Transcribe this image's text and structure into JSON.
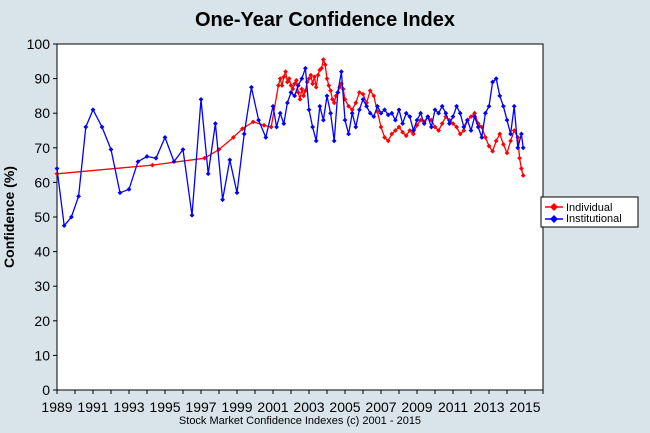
{
  "chart_data": {
    "type": "line",
    "title": "One-Year Confidence Index",
    "xlabel": "",
    "ylabel": "Confidence (%)",
    "footer": "Stock Market Confidence Indexes (c) 2001 - 2015",
    "xlim": [
      1989,
      2016
    ],
    "ylim": [
      0,
      100
    ],
    "yticks": [
      0,
      10,
      20,
      30,
      40,
      50,
      60,
      70,
      80,
      90,
      100
    ],
    "xticks": [
      1989,
      1991,
      1993,
      1995,
      1997,
      1999,
      2001,
      2003,
      2005,
      2007,
      2009,
      2011,
      2013,
      2015
    ],
    "grid": false,
    "legend": "right",
    "series": [
      {
        "name": "Individual",
        "color": "#ff0000",
        "x": [
          1989.0,
          1994.3,
          1997.2,
          1998.0,
          1998.8,
          1999.3,
          1999.9,
          2000.5,
          2000.9,
          2001.3,
          2001.4,
          2001.5,
          2001.6,
          2001.7,
          2001.8,
          2001.9,
          2002.0,
          2002.1,
          2002.2,
          2002.3,
          2002.4,
          2002.5,
          2002.6,
          2002.7,
          2002.8,
          2002.9,
          2003.0,
          2003.1,
          2003.2,
          2003.3,
          2003.4,
          2003.5,
          2003.6,
          2003.7,
          2003.8,
          2003.9,
          2004.0,
          2004.1,
          2004.2,
          2004.3,
          2004.4,
          2004.5,
          2004.6,
          2004.7,
          2004.8,
          2004.9,
          2005.0,
          2005.2,
          2005.4,
          2005.6,
          2005.8,
          2006.0,
          2006.2,
          2006.4,
          2006.6,
          2006.8,
          2007.0,
          2007.2,
          2007.4,
          2007.6,
          2007.8,
          2008.0,
          2008.2,
          2008.4,
          2008.6,
          2008.8,
          2009.0,
          2009.2,
          2009.4,
          2009.6,
          2009.8,
          2010.0,
          2010.2,
          2010.4,
          2010.6,
          2010.8,
          2011.0,
          2011.2,
          2011.4,
          2011.6,
          2011.8,
          2012.0,
          2012.2,
          2012.4,
          2012.6,
          2012.8,
          2013.0,
          2013.2,
          2013.4,
          2013.6,
          2013.8,
          2014.0,
          2014.2,
          2014.4,
          2014.6,
          2014.7,
          2014.8,
          2014.9
        ],
        "y": [
          62.5,
          65.0,
          67.0,
          69.5,
          73.0,
          75.5,
          77.5,
          76.5,
          76.0,
          88.0,
          90.0,
          88.0,
          90.5,
          92.0,
          89.0,
          90.0,
          88.0,
          87.0,
          88.5,
          89.5,
          86.0,
          84.0,
          87.0,
          85.0,
          86.5,
          89.0,
          90.0,
          91.0,
          88.5,
          90.5,
          87.5,
          91.0,
          92.5,
          93.0,
          95.5,
          94.0,
          90.0,
          88.0,
          86.5,
          84.0,
          83.0,
          85.0,
          86.0,
          87.5,
          88.5,
          87.0,
          84.0,
          82.0,
          81.0,
          83.0,
          86.0,
          85.5,
          83.0,
          86.5,
          85.0,
          80.5,
          76.0,
          73.0,
          72.0,
          74.0,
          75.0,
          76.0,
          74.5,
          73.5,
          75.0,
          74.0,
          76.5,
          78.0,
          77.5,
          79.0,
          78.0,
          76.0,
          75.0,
          77.0,
          79.0,
          78.0,
          77.0,
          76.0,
          74.0,
          75.0,
          78.0,
          79.0,
          80.0,
          77.0,
          76.0,
          73.0,
          70.5,
          69.0,
          72.0,
          74.0,
          71.0,
          68.5,
          72.0,
          75.0,
          73.0,
          67.0,
          64.0,
          62.0
        ]
      },
      {
        "name": "Institutional",
        "color": "#0000ff",
        "x": [
          1989.0,
          1989.4,
          1989.8,
          1990.2,
          1990.6,
          1991.0,
          1991.5,
          1992.0,
          1992.5,
          1993.0,
          1993.5,
          1994.0,
          1994.5,
          1995.0,
          1995.5,
          1996.0,
          1996.5,
          1997.0,
          1997.4,
          1997.8,
          1998.2,
          1998.6,
          1999.0,
          1999.4,
          1999.8,
          2000.2,
          2000.6,
          2001.0,
          2001.2,
          2001.4,
          2001.6,
          2001.8,
          2002.0,
          2002.2,
          2002.4,
          2002.6,
          2002.8,
          2003.0,
          2003.2,
          2003.4,
          2003.6,
          2003.8,
          2004.0,
          2004.2,
          2004.4,
          2004.6,
          2004.8,
          2005.0,
          2005.2,
          2005.4,
          2005.6,
          2005.8,
          2006.0,
          2006.2,
          2006.4,
          2006.6,
          2006.8,
          2007.0,
          2007.2,
          2007.4,
          2007.6,
          2007.8,
          2008.0,
          2008.2,
          2008.4,
          2008.6,
          2008.8,
          2009.0,
          2009.2,
          2009.4,
          2009.6,
          2009.8,
          2010.0,
          2010.2,
          2010.4,
          2010.6,
          2010.8,
          2011.0,
          2011.2,
          2011.4,
          2011.6,
          2011.8,
          2012.0,
          2012.2,
          2012.4,
          2012.6,
          2012.8,
          2013.0,
          2013.2,
          2013.4,
          2013.6,
          2013.8,
          2014.0,
          2014.2,
          2014.4,
          2014.6,
          2014.8,
          2014.9
        ],
        "y": [
          64.0,
          47.5,
          50.0,
          56.0,
          76.0,
          81.0,
          76.0,
          69.5,
          57.0,
          58.0,
          66.0,
          67.5,
          67.0,
          73.0,
          66.0,
          69.5,
          50.5,
          84.0,
          62.5,
          77.0,
          55.0,
          66.5,
          57.0,
          74.0,
          87.5,
          78.0,
          73.0,
          82.0,
          76.0,
          80.0,
          77.0,
          83.0,
          86.0,
          85.0,
          88.0,
          90.0,
          93.0,
          81.0,
          76.0,
          72.0,
          82.0,
          78.0,
          85.0,
          80.0,
          72.0,
          86.0,
          92.0,
          78.0,
          74.0,
          80.0,
          76.0,
          81.0,
          84.0,
          82.0,
          80.0,
          79.0,
          82.0,
          80.0,
          81.0,
          79.5,
          80.0,
          78.0,
          81.0,
          77.0,
          80.0,
          79.0,
          75.0,
          78.0,
          80.0,
          77.0,
          79.0,
          76.0,
          81.0,
          80.0,
          82.0,
          80.0,
          77.0,
          79.0,
          82.0,
          80.0,
          76.0,
          78.0,
          75.0,
          79.0,
          76.0,
          73.0,
          80.0,
          82.0,
          89.0,
          90.0,
          85.0,
          82.0,
          78.0,
          74.0,
          82.0,
          70.0,
          74.0,
          70.0
        ]
      }
    ]
  }
}
